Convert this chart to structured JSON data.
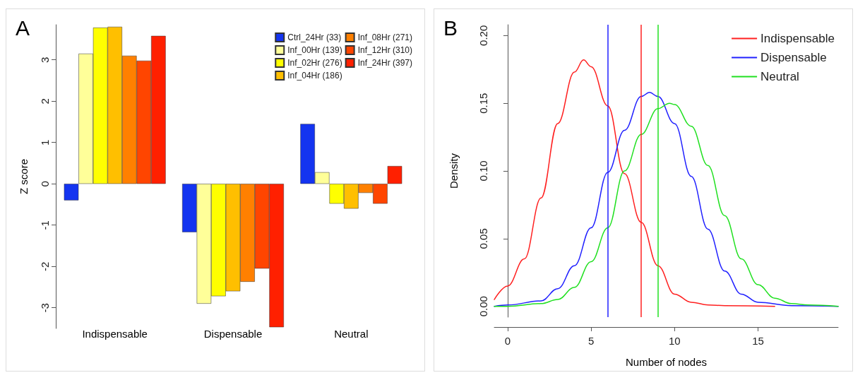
{
  "chart_data": [
    {
      "type": "bar",
      "title": "A",
      "ylabel": "Z score",
      "categories": [
        "Indispensable",
        "Dispensable",
        "Neutral"
      ],
      "ylim": [
        -3.5,
        3.85
      ],
      "yticks": [
        -3,
        -2,
        -1,
        0,
        1,
        2,
        3
      ],
      "grid": false,
      "legend": "top right",
      "series": [
        {
          "name": "Ctrl_24Hr (33)",
          "color": "#1434f0",
          "values": [
            -0.4,
            -1.17,
            1.45
          ]
        },
        {
          "name": "Inf_00Hr (139)",
          "color": "#ffff99",
          "values": [
            3.15,
            -2.9,
            0.28
          ]
        },
        {
          "name": "Inf_02Hr (276)",
          "color": "#ffff00",
          "values": [
            3.78,
            -2.72,
            -0.48
          ]
        },
        {
          "name": "Inf_04Hr (186)",
          "color": "#ffbf00",
          "values": [
            3.8,
            -2.6,
            -0.6
          ]
        },
        {
          "name": "Inf_08Hr (271)",
          "color": "#ff8000",
          "values": [
            3.1,
            -2.37,
            -0.22
          ]
        },
        {
          "name": "Inf_12Hr (310)",
          "color": "#ff4500",
          "values": [
            2.98,
            -2.05,
            -0.48
          ]
        },
        {
          "name": "Inf_24Hr (397)",
          "color": "#ff2000",
          "values": [
            3.58,
            -3.47,
            0.43
          ]
        }
      ]
    },
    {
      "type": "line",
      "title": "B",
      "xlabel": "Number of nodes",
      "ylabel": "Density",
      "xlim": [
        -0.8,
        19.8
      ],
      "xticks": [
        0,
        5,
        10,
        15
      ],
      "ylim": [
        -0.008,
        0.208
      ],
      "yticks": [
        {
          "value": 0,
          "label": "0.00"
        },
        {
          "value": 0.05,
          "label": "0.05"
        },
        {
          "value": 0.1,
          "label": "0.10"
        },
        {
          "value": 0.15,
          "label": "0.15"
        },
        {
          "value": 0.2,
          "label": "0.20"
        }
      ],
      "grid": false,
      "legend": "top right",
      "marker": "none",
      "line_style": "solid",
      "series": [
        {
          "name": "Indispensable",
          "color": "#ff2020",
          "x": [
            -0.8,
            0,
            1,
            2,
            3,
            4,
            4.55,
            5,
            6,
            7,
            8,
            9,
            10,
            11,
            12,
            13,
            16
          ],
          "values": [
            0.005,
            0.015,
            0.035,
            0.08,
            0.135,
            0.173,
            0.182,
            0.177,
            0.148,
            0.098,
            0.062,
            0.03,
            0.009,
            0.003,
            0.001,
            0.0005,
            0
          ]
        },
        {
          "name": "Dispensable",
          "color": "#2020ff",
          "x": [
            -0.8,
            0,
            2,
            3,
            4,
            5,
            6,
            7,
            8,
            8.5,
            9,
            10,
            11,
            12,
            13,
            14,
            15,
            17,
            19.8
          ],
          "values": [
            0,
            0.001,
            0.004,
            0.013,
            0.03,
            0.058,
            0.099,
            0.13,
            0.155,
            0.158,
            0.155,
            0.135,
            0.096,
            0.057,
            0.026,
            0.009,
            0.003,
            0.0005,
            0
          ]
        },
        {
          "name": "Neutral",
          "color": "#20e020",
          "x": [
            -0.8,
            0,
            2,
            3,
            4,
            5,
            6,
            7,
            8,
            9,
            9.7,
            10,
            11,
            12,
            13,
            14,
            15,
            16,
            17,
            18,
            19.8
          ],
          "values": [
            0,
            0,
            0.002,
            0.005,
            0.014,
            0.033,
            0.058,
            0.1,
            0.127,
            0.146,
            0.15,
            0.149,
            0.133,
            0.104,
            0.067,
            0.035,
            0.016,
            0.006,
            0.002,
            0.001,
            0
          ]
        }
      ],
      "ref_lines": [
        {
          "axis": "x",
          "value": 6,
          "color": "#2020ff"
        },
        {
          "axis": "x",
          "value": 8,
          "color": "#ff2020"
        },
        {
          "axis": "x",
          "value": 9,
          "color": "#20e020"
        }
      ]
    }
  ]
}
